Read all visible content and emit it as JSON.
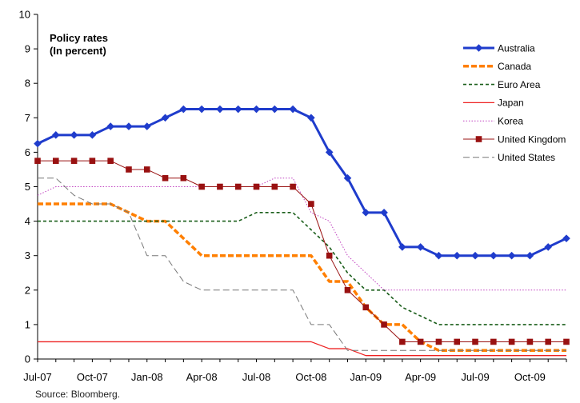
{
  "chart_data": {
    "type": "line",
    "title": "Policy rates",
    "subtitle": "(In percent)",
    "source": "Source: Bloomberg.",
    "ylim": [
      0,
      10
    ],
    "yticks": [
      0,
      1,
      2,
      3,
      4,
      5,
      6,
      7,
      8,
      9,
      10
    ],
    "x_ticks": [
      {
        "label": "Jul-07",
        "index": 0
      },
      {
        "label": "Oct-07",
        "index": 3
      },
      {
        "label": "Jan-08",
        "index": 6
      },
      {
        "label": "Apr-08",
        "index": 9
      },
      {
        "label": "Jul-08",
        "index": 12
      },
      {
        "label": "Oct-08",
        "index": 15
      },
      {
        "label": "Jan-09",
        "index": 18
      },
      {
        "label": "Apr-09",
        "index": 21
      },
      {
        "label": "Jul-09",
        "index": 24
      },
      {
        "label": "Oct-09",
        "index": 27
      }
    ],
    "grid": false,
    "legend_position": "top-right",
    "series": [
      {
        "name": "Australia",
        "color": "#1f3ccc",
        "style": "line-diamond",
        "values": [
          6.25,
          6.5,
          6.5,
          6.5,
          6.75,
          6.75,
          6.75,
          7.0,
          7.25,
          7.25,
          7.25,
          7.25,
          7.25,
          7.25,
          7.25,
          7.0,
          6.0,
          5.25,
          4.25,
          4.25,
          3.25,
          3.25,
          3.0,
          3.0,
          3.0,
          3.0,
          3.0,
          3.0,
          3.25,
          3.5
        ]
      },
      {
        "name": "Canada",
        "color": "#ff7f00",
        "style": "dash-thick",
        "values": [
          4.5,
          4.5,
          4.5,
          4.5,
          4.5,
          4.25,
          4.0,
          4.0,
          3.5,
          3.0,
          3.0,
          3.0,
          3.0,
          3.0,
          3.0,
          3.0,
          2.25,
          2.25,
          1.5,
          1.0,
          1.0,
          0.5,
          0.25,
          0.25,
          0.25,
          0.25,
          0.25,
          0.25,
          0.25,
          0.25
        ]
      },
      {
        "name": "Euro Area",
        "color": "#1a5e1a",
        "style": "dash",
        "values": [
          4.0,
          4.0,
          4.0,
          4.0,
          4.0,
          4.0,
          4.0,
          4.0,
          4.0,
          4.0,
          4.0,
          4.0,
          4.25,
          4.25,
          4.25,
          3.75,
          3.25,
          2.5,
          2.0,
          2.0,
          1.5,
          1.25,
          1.0,
          1.0,
          1.0,
          1.0,
          1.0,
          1.0,
          1.0,
          1.0
        ]
      },
      {
        "name": "Japan",
        "color": "#ee2222",
        "style": "solid",
        "values": [
          0.5,
          0.5,
          0.5,
          0.5,
          0.5,
          0.5,
          0.5,
          0.5,
          0.5,
          0.5,
          0.5,
          0.5,
          0.5,
          0.5,
          0.5,
          0.5,
          0.3,
          0.3,
          0.1,
          0.1,
          0.1,
          0.1,
          0.1,
          0.1,
          0.1,
          0.1,
          0.1,
          0.1,
          0.1,
          0.1
        ]
      },
      {
        "name": "Korea",
        "color": "#c040c0",
        "style": "dot",
        "values": [
          4.75,
          5.0,
          5.0,
          5.0,
          5.0,
          5.0,
          5.0,
          5.0,
          5.0,
          5.0,
          5.0,
          5.0,
          5.0,
          5.25,
          5.25,
          4.25,
          4.0,
          3.0,
          2.5,
          2.0,
          2.0,
          2.0,
          2.0,
          2.0,
          2.0,
          2.0,
          2.0,
          2.0,
          2.0,
          2.0
        ]
      },
      {
        "name": "United Kingdom",
        "color": "#991111",
        "style": "line-square",
        "values": [
          5.75,
          5.75,
          5.75,
          5.75,
          5.75,
          5.5,
          5.5,
          5.25,
          5.25,
          5.0,
          5.0,
          5.0,
          5.0,
          5.0,
          5.0,
          4.5,
          3.0,
          2.0,
          1.5,
          1.0,
          0.5,
          0.5,
          0.5,
          0.5,
          0.5,
          0.5,
          0.5,
          0.5,
          0.5,
          0.5
        ]
      },
      {
        "name": "United States",
        "color": "#777777",
        "style": "dash-long",
        "values": [
          5.25,
          5.25,
          4.75,
          4.5,
          4.5,
          4.25,
          3.0,
          3.0,
          2.25,
          2.0,
          2.0,
          2.0,
          2.0,
          2.0,
          2.0,
          1.0,
          1.0,
          0.25,
          0.25,
          0.25,
          0.25,
          0.25,
          0.25,
          0.25,
          0.25,
          0.25,
          0.25,
          0.25,
          0.25,
          0.25
        ]
      }
    ]
  }
}
